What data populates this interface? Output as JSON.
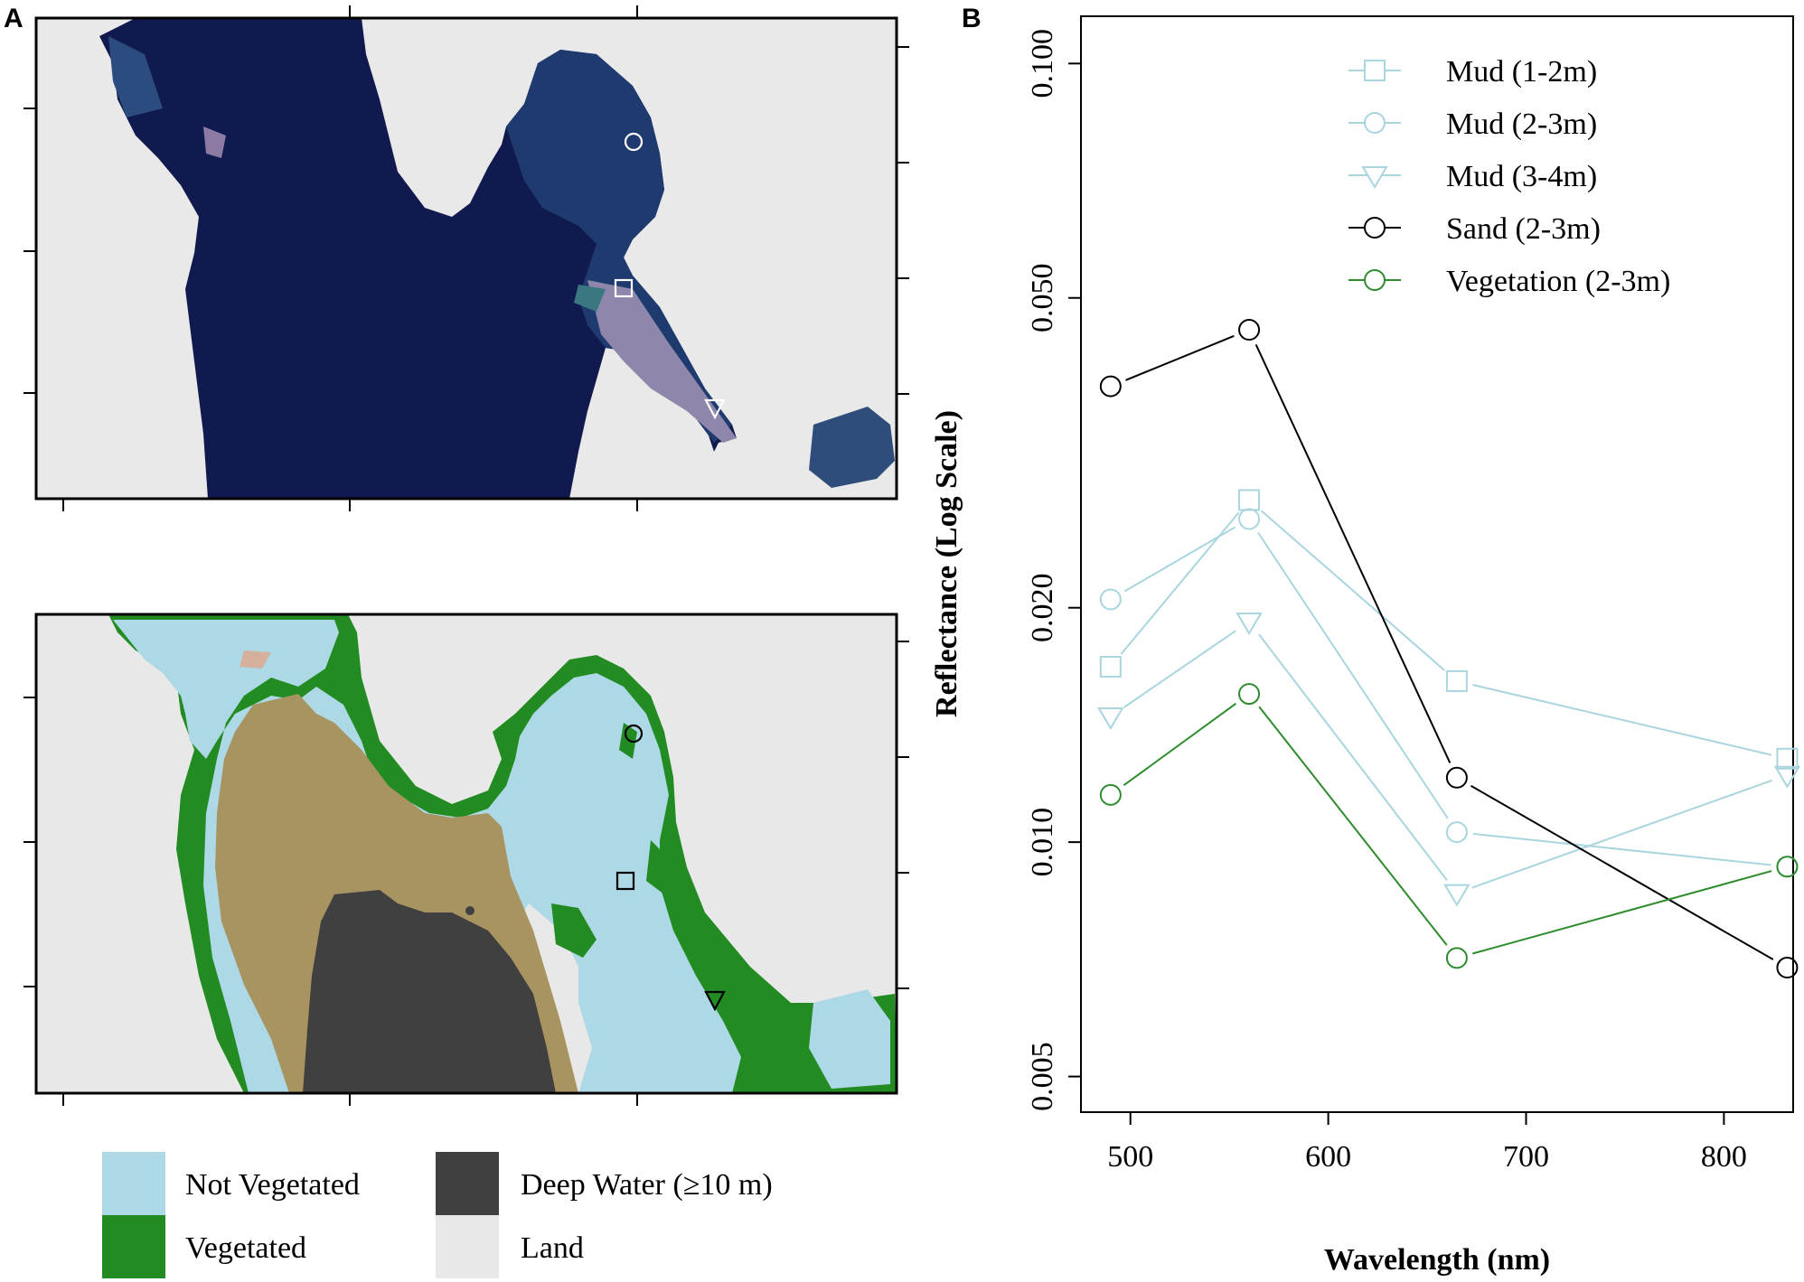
{
  "figure": {
    "panel_a_label": "A",
    "panel_b_label": "B"
  },
  "map_legend": {
    "items": [
      {
        "label": "Not Vegetated",
        "color": "#add8e6"
      },
      {
        "label": "Vegetated",
        "color": "#228b22"
      },
      {
        "label": "Deep Water (≥10 m)",
        "color": "#404040"
      },
      {
        "label": "Land",
        "color": "#e8e8e8"
      }
    ]
  },
  "sample_markers": {
    "circle": "Sand (2-3m)",
    "square": "Mud (1-2m)",
    "triangle": "Mud (3-4m)"
  },
  "chart_data": {
    "type": "line",
    "xlabel": "Wavelength (nm)",
    "ylabel": "Reflectance (Log Scale)",
    "y_scale": "log",
    "xlim": [
      475,
      835
    ],
    "ylim": [
      0.0045,
      0.115
    ],
    "x_ticks": [
      500,
      600,
      700,
      800
    ],
    "y_ticks": [
      0.005,
      0.01,
      0.02,
      0.05,
      0.1
    ],
    "y_tick_labels": [
      "0.005",
      "0.010",
      "0.020",
      "0.050",
      "0.100"
    ],
    "legend_position": "top-right",
    "x": [
      490,
      560,
      665,
      832
    ],
    "series": [
      {
        "name": "Mud (1-2m)",
        "color": "#a9d5df",
        "marker": "square",
        "values": [
          0.0168,
          0.0275,
          0.0161,
          0.0128
        ]
      },
      {
        "name": "Mud (2-3m)",
        "color": "#a9d5df",
        "marker": "circle",
        "values": [
          0.0205,
          0.026,
          0.0103,
          0.0093
        ]
      },
      {
        "name": "Mud (3-4m)",
        "color": "#a9d5df",
        "marker": "triangle",
        "values": [
          0.0145,
          0.0192,
          0.0086,
          0.0122
        ]
      },
      {
        "name": "Sand (2-3m)",
        "color": "#000000",
        "marker": "circle",
        "values": [
          0.0385,
          0.0455,
          0.0121,
          0.0069
        ]
      },
      {
        "name": "Vegetation (2-3m)",
        "color": "#2e8b2e",
        "marker": "circle",
        "values": [
          0.0115,
          0.0155,
          0.0071,
          0.0093
        ]
      }
    ]
  }
}
